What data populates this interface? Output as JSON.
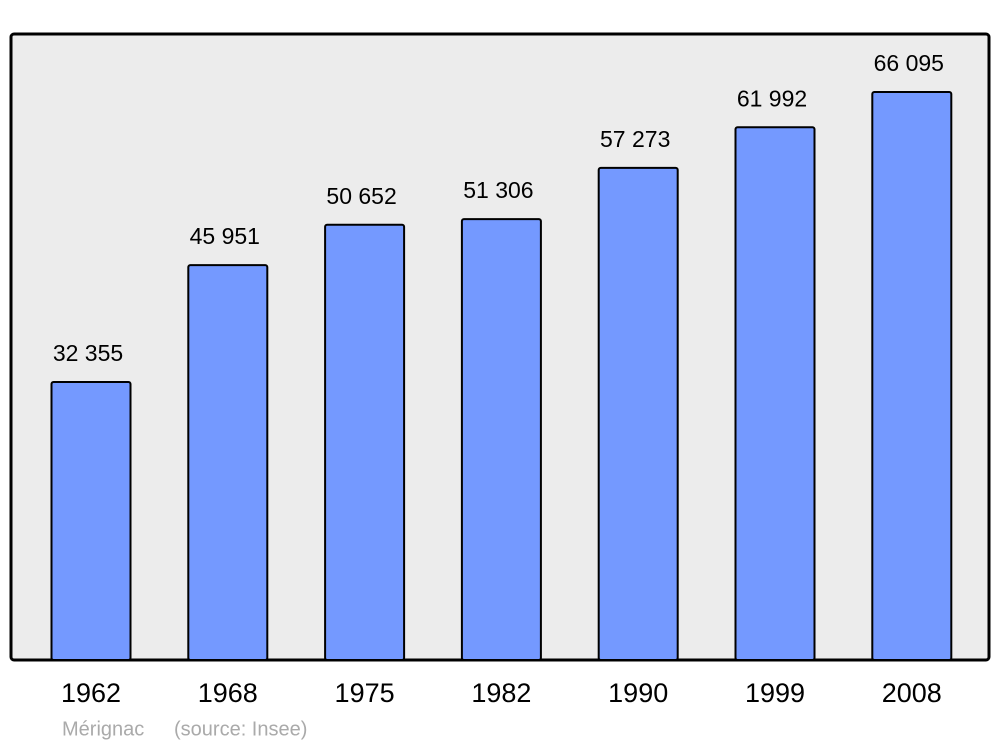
{
  "chart_data": {
    "type": "bar",
    "categories": [
      "1962",
      "1968",
      "1975",
      "1982",
      "1990",
      "1999",
      "2008"
    ],
    "values": [
      32355,
      45951,
      50652,
      51306,
      57273,
      61992,
      66095
    ],
    "value_labels": [
      "32 355",
      "45 951",
      "50 652",
      "51 306",
      "57 273",
      "61 992",
      "66 095"
    ],
    "color": "#7499ff",
    "place": "Mérignac",
    "source": "(source: Insee)"
  }
}
